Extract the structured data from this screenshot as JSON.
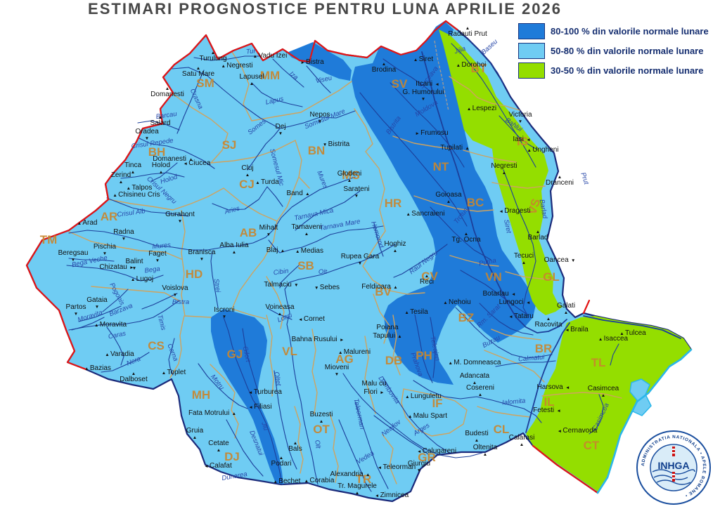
{
  "title": "ESTIMARI PROGNOSTICE PENTRU LUNA APRILIE 2026",
  "legend": {
    "items": [
      {
        "label": "80-100 % din valorile normale lunare",
        "color": "#1f7bd9"
      },
      {
        "label": "50-80 % din valorile normale lunare",
        "color": "#6fccf3"
      },
      {
        "label": "30-50 % din valorile normale lunare",
        "color": "#94de00"
      }
    ]
  },
  "logo": {
    "acronym": "INHGA",
    "ring_text": "ADMINISTRATIA NATIONALA • APELE ROMANE •"
  },
  "map": {
    "colors": {
      "base_50_80": "#6fccf3",
      "dark_80_100": "#1f7bd9",
      "green_30_50": "#94de00",
      "border_navy": "#1b2a7a",
      "border_red": "#e31414",
      "river": "#1c3f9a",
      "county_line": "#cfa35f",
      "county_code": "#c9862e",
      "coast_cyan": "#2ab6ea"
    },
    "counties": [
      [
        "SM",
        292,
        124,
        0
      ],
      [
        "MM",
        384,
        113,
        0
      ],
      [
        "SJ",
        326,
        212,
        0
      ],
      [
        "BH",
        223,
        222,
        0
      ],
      [
        "BN",
        450,
        220,
        0
      ],
      [
        "CJ",
        351,
        268,
        0
      ],
      [
        "MS",
        499,
        255,
        0
      ],
      [
        "HR",
        559,
        295,
        0
      ],
      [
        "SV",
        568,
        125,
        0
      ],
      [
        "BT",
        681,
        103,
        0
      ],
      [
        "NT",
        627,
        243,
        0
      ],
      [
        "BC",
        676,
        294,
        0
      ],
      [
        "IS",
        743,
        207,
        0
      ],
      [
        "VS",
        765,
        296,
        -72
      ],
      [
        "GL",
        784,
        400,
        0
      ],
      [
        "AR",
        155,
        314,
        0
      ],
      [
        "TM",
        69,
        347,
        0
      ],
      [
        "AB",
        353,
        337,
        0
      ],
      [
        "HD",
        276,
        396,
        0
      ],
      [
        "SB",
        435,
        384,
        0
      ],
      [
        "BV",
        545,
        421,
        0
      ],
      [
        "CV",
        611,
        399,
        0
      ],
      [
        "VN",
        702,
        400,
        0
      ],
      [
        "BZ",
        663,
        458,
        0
      ],
      [
        "BR",
        773,
        502,
        0
      ],
      [
        "TL",
        851,
        522,
        0
      ],
      [
        "CS",
        222,
        498,
        0
      ],
      [
        "GJ",
        334,
        510,
        0
      ],
      [
        "VL",
        412,
        506,
        0
      ],
      [
        "AG",
        490,
        517,
        0
      ],
      [
        "DB",
        560,
        519,
        0
      ],
      [
        "PH",
        603,
        512,
        0
      ],
      [
        "MH",
        286,
        568,
        0
      ],
      [
        "DJ",
        330,
        656,
        0
      ],
      [
        "OT",
        457,
        617,
        0
      ],
      [
        "TR",
        517,
        688,
        0
      ],
      [
        "GR",
        607,
        657,
        0
      ],
      [
        "IF",
        622,
        580,
        0
      ],
      [
        "IL",
        781,
        578,
        0
      ],
      [
        "CL",
        713,
        617,
        0
      ],
      [
        "CT",
        841,
        640,
        0
      ]
    ],
    "stations": [
      [
        "Turulung",
        303,
        86,
        "▲",
        "a"
      ],
      [
        "Negresti",
        337,
        96,
        "▲",
        "l"
      ],
      [
        "Vadu Izei",
        384,
        82,
        "▲",
        "l"
      ],
      [
        "Bistra",
        444,
        91,
        "►",
        "l"
      ],
      [
        "Satu Mare",
        282,
        108,
        "▲",
        "a"
      ],
      [
        "Lapusel",
        358,
        112,
        "▲",
        "b"
      ],
      [
        "Domanesti",
        238,
        137,
        "▲",
        "a"
      ],
      [
        "Salard",
        228,
        178,
        "▲",
        "a"
      ],
      [
        "Oradea",
        209,
        190,
        "▼",
        "b"
      ],
      [
        "Tinca",
        189,
        238,
        "▲",
        "b"
      ],
      [
        "Holod",
        229,
        238,
        "▲",
        "b"
      ],
      [
        "Domanesti",
        246,
        229,
        "▲",
        "r"
      ],
      [
        "Ciucea",
        280,
        235,
        "◄",
        "l"
      ],
      [
        "Zerind",
        172,
        252,
        "▲",
        "b"
      ],
      [
        "Talpos",
        198,
        270,
        "▲",
        "l"
      ],
      [
        "Chisineu Cris",
        194,
        280,
        "▲",
        "l"
      ],
      [
        "Gurahont",
        256,
        308,
        "▼",
        "b"
      ],
      [
        "Arad",
        124,
        320,
        "▲",
        "l"
      ],
      [
        "Radna",
        176,
        333,
        "▼",
        "b"
      ],
      [
        "Pischia",
        149,
        354,
        "▼",
        "b"
      ],
      [
        "Beregsau",
        104,
        363,
        "▼",
        "b"
      ],
      [
        "Faget",
        224,
        364,
        "▼",
        "b"
      ],
      [
        "Balint",
        191,
        375,
        "▼",
        "b"
      ],
      [
        "Chizatau",
        166,
        383,
        "►",
        "r"
      ],
      [
        "Lugoj",
        202,
        400,
        "▲",
        "l"
      ],
      [
        "Voislova",
        249,
        413,
        "▼",
        "b"
      ],
      [
        "Gataia",
        138,
        430,
        "▼",
        "b"
      ],
      [
        "Partos",
        108,
        440,
        "▼",
        "b"
      ],
      [
        "Moravita",
        157,
        465,
        "▲",
        "l"
      ],
      [
        "Varadia",
        170,
        507,
        "▲",
        "l"
      ],
      [
        "Bazias",
        139,
        527,
        "▲",
        "l"
      ],
      [
        "Dalboset",
        190,
        543,
        "▲",
        "a"
      ],
      [
        "Toplet",
        247,
        533,
        "▲",
        "l"
      ],
      [
        "Nepos",
        455,
        166,
        "▼",
        "b"
      ],
      [
        "Bistrita",
        478,
        208,
        "▼",
        "l"
      ],
      [
        "Dej",
        399,
        183,
        "▼",
        "b"
      ],
      [
        "Cluj",
        352,
        242,
        "▲",
        "b"
      ],
      [
        "Turda",
        380,
        262,
        "▲",
        "l"
      ],
      [
        "Glodeni",
        497,
        250,
        "▲",
        "b"
      ],
      [
        "Sarateni",
        507,
        272,
        "▼",
        "b"
      ],
      [
        "Band",
        424,
        278,
        "▲",
        "r"
      ],
      [
        "Mihalt",
        382,
        327,
        "▼",
        "b"
      ],
      [
        "Tarnaveni",
        436,
        326,
        "▲",
        "b"
      ],
      [
        "Alba Iulia",
        333,
        352,
        "▲",
        "b"
      ],
      [
        "Branisca",
        287,
        362,
        "▼",
        "b"
      ],
      [
        "Blaj",
        392,
        359,
        "▲",
        "r"
      ],
      [
        "Medias",
        440,
        360,
        "▲",
        "l"
      ],
      [
        "Rupea Gara",
        512,
        368,
        "▼",
        "b"
      ],
      [
        "Hoghiz",
        562,
        350,
        "▲",
        "b"
      ],
      [
        "Talmaciu",
        400,
        408,
        "▼",
        "r"
      ],
      [
        "Sebes",
        465,
        412,
        "▼",
        "l"
      ],
      [
        "Feldioara",
        540,
        411,
        "▲",
        "r"
      ],
      [
        "Reci",
        607,
        404,
        "▲",
        "a"
      ],
      [
        "Voineasa",
        398,
        440,
        "▲",
        "b"
      ],
      [
        "Cornet",
        443,
        457,
        "◄",
        "l"
      ],
      [
        "Bahna Rusului",
        452,
        486,
        "►",
        "r"
      ],
      [
        "Malureni",
        504,
        504,
        "▲",
        "l"
      ],
      [
        "Mioveni",
        479,
        526,
        "▼",
        "b"
      ],
      [
        "Iscroni",
        319,
        444,
        "▼",
        "b"
      ],
      [
        "Siret",
        602,
        87,
        "▲",
        "l"
      ],
      [
        "Brodina",
        546,
        102,
        "▲",
        "a"
      ],
      [
        "Radauti Prut",
        665,
        51,
        "▲",
        "a"
      ],
      [
        "Dorohoi",
        670,
        95,
        "▲",
        "l"
      ],
      [
        "Itcani",
        608,
        122,
        "◄",
        "r"
      ],
      [
        "G. Humorului",
        602,
        134,
        "▼",
        "b"
      ],
      [
        "Frumosu",
        614,
        192,
        "►",
        "l"
      ],
      [
        "Lespezi",
        685,
        157,
        "▲",
        "l"
      ],
      [
        "Victoria",
        740,
        166,
        "▼",
        "b"
      ],
      [
        "Iasi",
        742,
        201,
        "◄",
        "r"
      ],
      [
        "Ungheni",
        772,
        216,
        "▲",
        "l"
      ],
      [
        "Dranceni",
        796,
        263,
        "▲",
        "a"
      ],
      [
        "Tupilati",
        647,
        213,
        "▲",
        "r"
      ],
      [
        "Negresti",
        717,
        239,
        "▲",
        "b"
      ],
      [
        "Goioasa",
        638,
        280,
        "▲",
        "b"
      ],
      [
        "Sancraieni",
        605,
        307,
        "▲",
        "l"
      ],
      [
        "Dragesti",
        732,
        303,
        "◄",
        "l"
      ],
      [
        "Tg. Ocna",
        663,
        344,
        "▲",
        "a"
      ],
      [
        "Barlad",
        765,
        341,
        "▲",
        "a"
      ],
      [
        "Tecuci",
        745,
        367,
        "▲",
        "b"
      ],
      [
        "Oancea",
        796,
        373,
        "▼",
        "r"
      ],
      [
        "Galati",
        805,
        438,
        "▲",
        "b"
      ],
      [
        "Botarlau",
        710,
        421,
        "◄",
        "r"
      ],
      [
        "Lungoci",
        732,
        433,
        "◄",
        "r"
      ],
      [
        "Tataru",
        741,
        453,
        "◄",
        "l"
      ],
      [
        "Nehoiu",
        650,
        433,
        "▲",
        "l"
      ],
      [
        "Tesila",
        592,
        447,
        "▲",
        "l"
      ],
      [
        "Poiana",
        551,
        469,
        "",
        ""
      ],
      [
        "Tapului",
        551,
        481,
        "▲",
        "r"
      ],
      [
        "Racovita",
        780,
        465,
        "▲",
        "a"
      ],
      [
        "Braila",
        820,
        472,
        "◄",
        "l"
      ],
      [
        "Isaccea",
        872,
        485,
        "▲",
        "l"
      ],
      [
        "Tulcea",
        900,
        477,
        "▲",
        "l"
      ],
      [
        "M. Domneasca",
        675,
        519,
        "▲",
        "l"
      ],
      [
        "Adancata",
        675,
        538,
        "▲",
        "b"
      ],
      [
        "Cosereni",
        683,
        555,
        "▲",
        "b"
      ],
      [
        "Lunguletu",
        602,
        567,
        "▲",
        "l"
      ],
      [
        "Malu Spart",
        608,
        595,
        "▲",
        "l"
      ],
      [
        "Malu cu",
        532,
        549,
        "",
        ""
      ],
      [
        "Flori",
        532,
        561,
        "►",
        "r"
      ],
      [
        "Budesti",
        678,
        620,
        "▲",
        "b"
      ],
      [
        "Oltenita",
        690,
        640,
        "▲",
        "b"
      ],
      [
        "Calarasi",
        742,
        626,
        "▲",
        "b"
      ],
      [
        "Fetesti",
        778,
        587,
        "◄",
        "r"
      ],
      [
        "Harsova",
        787,
        554,
        "◄",
        "r"
      ],
      [
        "Cernavoda",
        821,
        616,
        "◄",
        "l"
      ],
      [
        "Casimcea",
        858,
        556,
        "▲",
        "b"
      ],
      [
        "Fata Motrului",
        302,
        591,
        "▲",
        "r"
      ],
      [
        "Filiasi",
        370,
        582,
        "◄",
        "l"
      ],
      [
        "Turburea",
        377,
        561,
        "◄",
        "l"
      ],
      [
        "Gruia",
        277,
        616,
        "▲",
        "b"
      ],
      [
        "Cetate",
        311,
        634,
        "▲",
        "b"
      ],
      [
        "Calafat",
        310,
        666,
        "◄",
        "l"
      ],
      [
        "Podari",
        400,
        663,
        "▲",
        "a"
      ],
      [
        "Bechet",
        408,
        688,
        "▲",
        "l"
      ],
      [
        "Bals",
        420,
        642,
        "▲",
        "a"
      ],
      [
        "Buzesti",
        457,
        593,
        "▲",
        "b"
      ],
      [
        "Corabia",
        454,
        687,
        "▲",
        "l"
      ],
      [
        "Alexandria",
        498,
        678,
        "▲",
        "r"
      ],
      [
        "Tr. Magurele",
        508,
        695,
        "▲",
        "b"
      ],
      [
        "Zimnicea",
        557,
        708,
        "◄",
        "l"
      ],
      [
        "Teleorman",
        564,
        668,
        "◄",
        "l"
      ],
      [
        "Giurgiu",
        596,
        663,
        "▼",
        "b"
      ],
      [
        "Calugareni",
        621,
        645,
        "◄",
        "l"
      ]
    ],
    "rivers": [
      [
        "Tur",
        357,
        76,
        -5
      ],
      [
        "Iza",
        416,
        110,
        40
      ],
      [
        "Viseu",
        461,
        116,
        -12
      ],
      [
        "Crasna",
        277,
        142,
        65
      ],
      [
        "Barcau",
        237,
        167,
        -8
      ],
      [
        "Lapus",
        391,
        146,
        -12
      ],
      [
        "Somes",
        367,
        183,
        -38
      ],
      [
        "Somesul Mare",
        463,
        172,
        -22
      ],
      [
        "Somesul Mic",
        391,
        239,
        75
      ],
      [
        "Crisul Repede",
        217,
        207,
        -8
      ],
      [
        "Holod",
        241,
        258,
        -18
      ],
      [
        "Crisul Negru",
        228,
        273,
        42
      ],
      [
        "Crisul Alb",
        187,
        306,
        -8
      ],
      [
        "Mures",
        230,
        353,
        -6
      ],
      [
        "Mures",
        456,
        257,
        68
      ],
      [
        "Aries",
        331,
        302,
        -15
      ],
      [
        "Tarnava Mica",
        447,
        308,
        -12
      ],
      [
        "Tarnava Mare",
        484,
        323,
        -10
      ],
      [
        "Homorod",
        534,
        335,
        72
      ],
      [
        "Strei",
        306,
        407,
        82
      ],
      [
        "Cibin",
        400,
        390,
        -8
      ],
      [
        "Olt",
        459,
        390,
        0
      ],
      [
        "Olt",
        449,
        633,
        83
      ],
      [
        "Oltet",
        392,
        540,
        80
      ],
      [
        "Jiu",
        374,
        608,
        72
      ],
      [
        "Desnatui",
        362,
        632,
        68
      ],
      [
        "Motru",
        307,
        546,
        52
      ],
      [
        "Gilort",
        348,
        505,
        78
      ],
      [
        "Dunarea",
        334,
        681,
        -10
      ],
      [
        "Lotru",
        406,
        455,
        -22
      ],
      [
        "Bistra",
        257,
        433,
        0
      ],
      [
        "Bega Veche",
        128,
        375,
        -12
      ],
      [
        "Bega",
        217,
        387,
        -8
      ],
      [
        "Pogonis",
        164,
        420,
        62
      ],
      [
        "Barzava",
        173,
        444,
        -22
      ],
      [
        "Moravita",
        129,
        453,
        -18
      ],
      [
        "Timis",
        227,
        460,
        75
      ],
      [
        "Caras",
        167,
        480,
        -12
      ],
      [
        "Nera",
        191,
        517,
        -22
      ],
      [
        "Cerna",
        243,
        503,
        68
      ],
      [
        "Suceava",
        612,
        112,
        -52
      ],
      [
        "Moldova",
        608,
        157,
        -32
      ],
      [
        "Bistrita",
        562,
        180,
        -55
      ],
      [
        "Siret",
        719,
        323,
        78
      ],
      [
        "Trotus",
        658,
        309,
        -52
      ],
      [
        "Putna",
        694,
        376,
        -12
      ],
      [
        "Rm. Sarat",
        697,
        452,
        -45
      ],
      [
        "Buzau",
        700,
        489,
        -28
      ],
      [
        "Calmatui",
        756,
        513,
        -5
      ],
      [
        "Raul Negru",
        604,
        376,
        -38
      ],
      [
        "Barlad",
        770,
        298,
        80
      ],
      [
        "Bahlui",
        729,
        180,
        35
      ],
      [
        "Jijia",
        655,
        74,
        -18
      ],
      [
        "Baseu",
        698,
        69,
        -42
      ],
      [
        "Prut",
        829,
        255,
        72
      ],
      [
        "Teleajen",
        616,
        497,
        78
      ],
      [
        "Prahova",
        590,
        520,
        70
      ],
      [
        "Dambovita",
        551,
        557,
        55
      ],
      [
        "Ialomita",
        731,
        575,
        -5
      ],
      [
        "Neajlov",
        558,
        612,
        -38
      ],
      [
        "Arges",
        601,
        614,
        -32
      ],
      [
        "Vedea",
        521,
        654,
        -32
      ],
      [
        "Teleorman",
        508,
        590,
        78
      ],
      [
        "Casimcea",
        857,
        595,
        -65
      ]
    ]
  }
}
